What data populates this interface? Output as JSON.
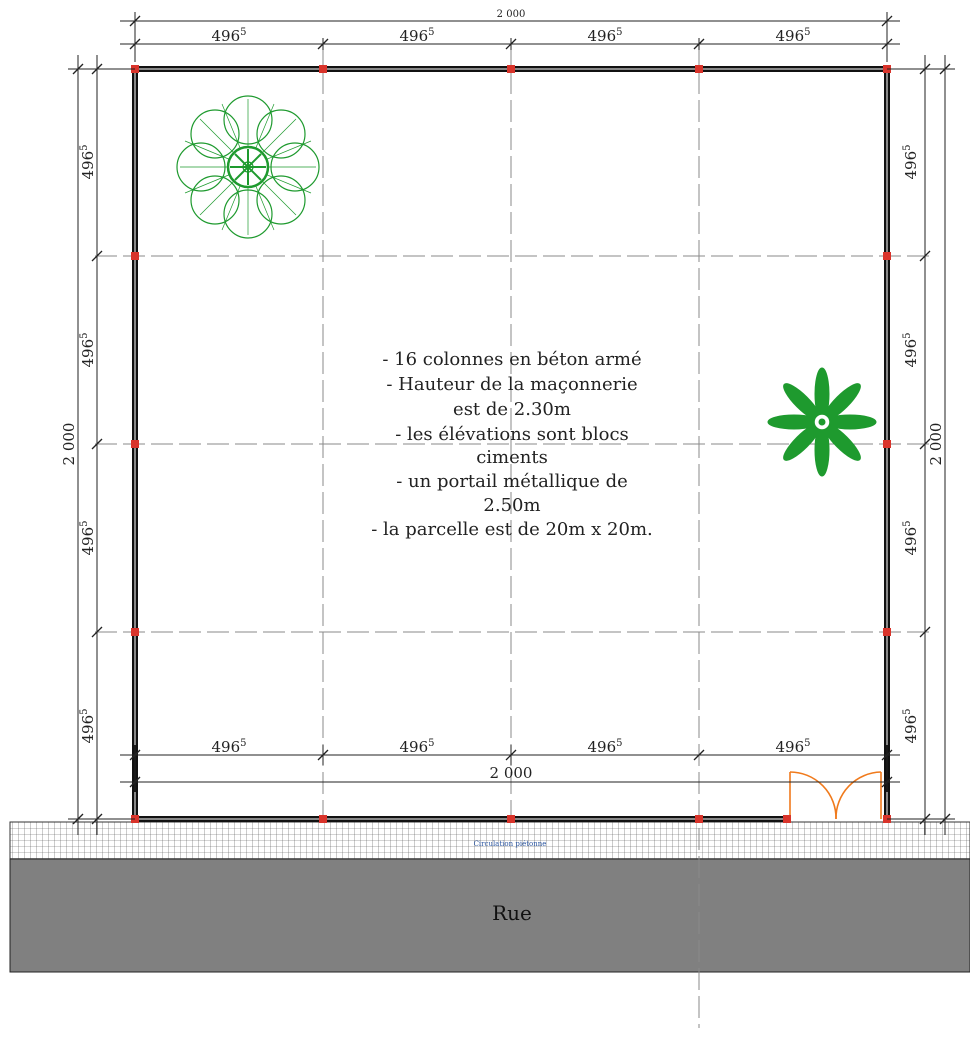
{
  "plan": {
    "total_dimension": "2 000",
    "bay_dimension": "496",
    "bay_dimension_sup": "5",
    "street_label": "Rue",
    "pedestrian_label": "Circulation piétonne",
    "notes": [
      "- 16 colonnes en béton armé",
      "- Hauteur de la maçonnerie",
      "est de 2.30m",
      "-  les élévations sont blocs",
      "ciments",
      "- un portail métallique de",
      "2.50m",
      "- la parcelle est de 20m x 20m."
    ],
    "colors": {
      "wall": "#111111",
      "column": "#d9342b",
      "tree": "#1e9a2e",
      "gate": "#f07a1c",
      "street": "#808080",
      "pedestrian_label": "#2a55a0"
    },
    "icons": [
      "large-tree-icon",
      "small-palm-icon",
      "metal-gate-icon"
    ]
  }
}
